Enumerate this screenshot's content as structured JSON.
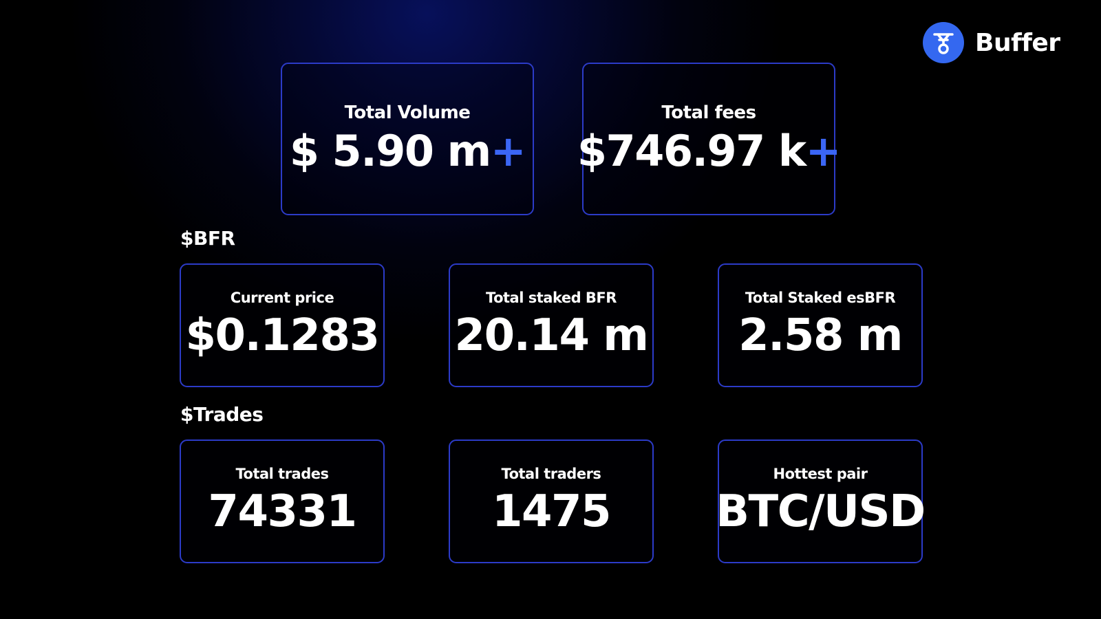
{
  "logo": {
    "name": "Buffer"
  },
  "overview": [
    {
      "label": "Total Volume",
      "value": "$ 5.90 m",
      "suffix": "+"
    },
    {
      "label": "Total fees",
      "value": "$746.97 k",
      "suffix": "+"
    }
  ],
  "sections": [
    {
      "title": "$BFR",
      "cards": [
        {
          "label": "Current price",
          "value": "$0.1283"
        },
        {
          "label": "Total staked BFR",
          "value": "20.14 m"
        },
        {
          "label": "Total Staked esBFR",
          "value": "2.58 m"
        }
      ]
    },
    {
      "title": "$Trades",
      "cards": [
        {
          "label": "Total trades",
          "value": "74331"
        },
        {
          "label": "Total traders",
          "value": "1475"
        },
        {
          "label": "Hottest pair",
          "value": "BTC/USD"
        }
      ]
    }
  ]
}
